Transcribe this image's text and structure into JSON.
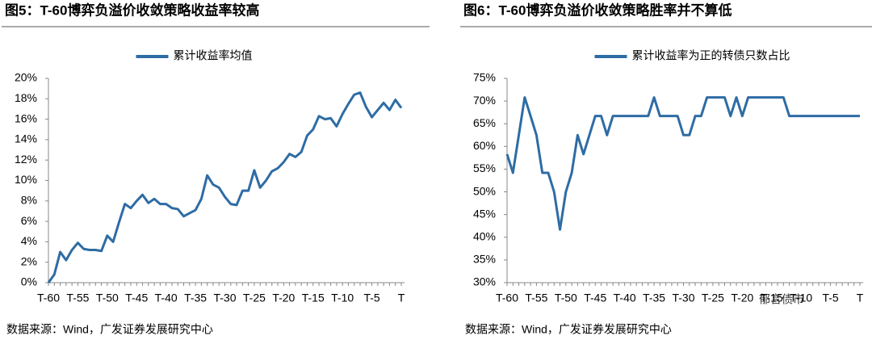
{
  "chart_data": [
    {
      "type": "line",
      "title": "图5：T-60博弈负溢价收敛策略收益率较高",
      "source": "数据来源：Wind，广发证券发展研究中心",
      "categories": [
        "T-60",
        null,
        null,
        null,
        null,
        "T-55",
        null,
        null,
        null,
        null,
        "T-50",
        null,
        null,
        null,
        null,
        "T-45",
        null,
        null,
        null,
        null,
        "T-40",
        null,
        null,
        null,
        null,
        "T-35",
        null,
        null,
        null,
        null,
        "T-30",
        null,
        null,
        null,
        null,
        "T-25",
        null,
        null,
        null,
        null,
        "T-20",
        null,
        null,
        null,
        null,
        "T-15",
        null,
        null,
        null,
        null,
        "T-10",
        null,
        null,
        null,
        null,
        "T-5",
        null,
        null,
        null,
        null,
        "T"
      ],
      "series": [
        {
          "name": "累计收益率均值",
          "color": "#2e6ca4",
          "values": [
            0,
            0.8,
            3.0,
            2.2,
            3.2,
            3.9,
            3.3,
            3.2,
            3.2,
            3.1,
            4.6,
            4.0,
            5.9,
            7.7,
            7.3,
            8.0,
            8.6,
            7.8,
            8.2,
            7.7,
            7.7,
            7.3,
            7.2,
            6.5,
            6.8,
            7.1,
            8.2,
            10.5,
            9.6,
            9.3,
            8.4,
            7.7,
            7.6,
            9.0,
            9.0,
            11.0,
            9.3,
            10.0,
            10.9,
            11.2,
            11.8,
            12.6,
            12.3,
            12.8,
            14.4,
            15.0,
            16.3,
            16.0,
            16.1,
            15.3,
            16.5,
            17.5,
            18.4,
            18.6,
            17.2,
            16.2,
            16.9,
            17.6,
            16.9,
            17.9,
            17.1
          ]
        }
      ],
      "ylim": [
        0,
        20
      ],
      "yticks": [
        {
          "value": 0,
          "label": "0%"
        },
        {
          "value": 2,
          "label": "2%"
        },
        {
          "value": 4,
          "label": "4%"
        },
        {
          "value": 6,
          "label": "6%"
        },
        {
          "value": 8,
          "label": "8%"
        },
        {
          "value": 10,
          "label": "10%"
        },
        {
          "value": 12,
          "label": "12%"
        },
        {
          "value": 14,
          "label": "14%"
        },
        {
          "value": 16,
          "label": "16%"
        },
        {
          "value": 18,
          "label": "18%"
        },
        {
          "value": 20,
          "label": "20%"
        }
      ],
      "legend": "top"
    },
    {
      "type": "line",
      "title": "图6：T-60博弈负溢价收敛策略胜率并不算低",
      "source": "数据来源：Wind，广发证券发展研究中心",
      "watermark": "郁言债市",
      "categories": [
        "T-60",
        null,
        null,
        null,
        null,
        "T-55",
        null,
        null,
        null,
        null,
        "T-50",
        null,
        null,
        null,
        null,
        "T-45",
        null,
        null,
        null,
        null,
        "T-40",
        null,
        null,
        null,
        null,
        "T-35",
        null,
        null,
        null,
        null,
        "T-30",
        null,
        null,
        null,
        null,
        "T-25",
        null,
        null,
        null,
        null,
        "T-20",
        null,
        null,
        null,
        null,
        "T-15",
        null,
        null,
        null,
        null,
        "T-10",
        null,
        null,
        null,
        null,
        "T-5",
        null,
        null,
        null,
        null,
        "T"
      ],
      "series": [
        {
          "name": "累计收益率为正的转债只数占比",
          "color": "#2e6ca4",
          "values": [
            58.3,
            54.2,
            62.5,
            70.8,
            66.7,
            62.5,
            54.2,
            54.2,
            50,
            41.7,
            50,
            54.2,
            62.5,
            58.3,
            62.5,
            66.7,
            66.7,
            62.5,
            66.7,
            66.7,
            66.7,
            66.7,
            66.7,
            66.7,
            66.7,
            70.8,
            66.7,
            66.7,
            66.7,
            66.7,
            62.5,
            62.5,
            66.7,
            66.7,
            70.8,
            70.8,
            70.8,
            70.8,
            66.7,
            70.8,
            66.7,
            70.8,
            70.8,
            70.8,
            70.8,
            70.8,
            70.8,
            70.8,
            66.7,
            66.7,
            66.7,
            66.7,
            66.7,
            66.7,
            66.7,
            66.7,
            66.7,
            66.7,
            66.7,
            66.7,
            66.7
          ]
        }
      ],
      "ylim": [
        30,
        75
      ],
      "yticks": [
        {
          "value": 30,
          "label": "30%"
        },
        {
          "value": 35,
          "label": "35%"
        },
        {
          "value": 40,
          "label": "40%"
        },
        {
          "value": 45,
          "label": "45%"
        },
        {
          "value": 50,
          "label": "50%"
        },
        {
          "value": 55,
          "label": "55%"
        },
        {
          "value": 60,
          "label": "60%"
        },
        {
          "value": 65,
          "label": "65%"
        },
        {
          "value": 70,
          "label": "70%"
        },
        {
          "value": 75,
          "label": "75%"
        }
      ],
      "legend": "top"
    }
  ]
}
